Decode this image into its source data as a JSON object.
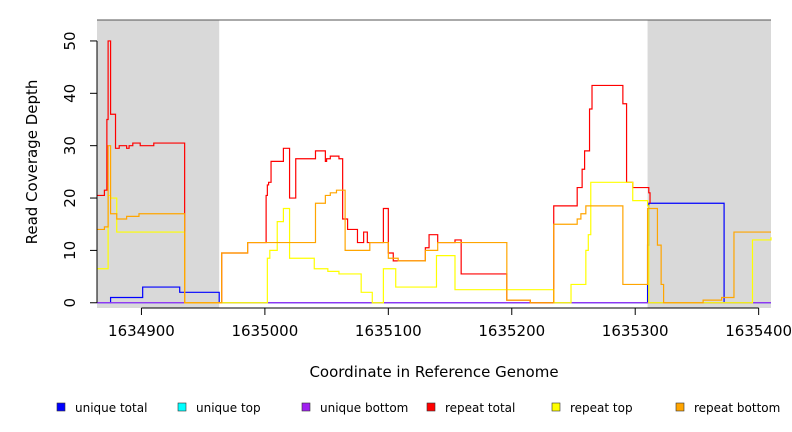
{
  "chart_data": {
    "type": "line",
    "title": "",
    "xlabel": "Coordinate in Reference Genome",
    "ylabel": "Read Coverage Depth",
    "xlim": [
      1634864,
      1635410
    ],
    "ylim": [
      -1,
      54
    ],
    "xticks": [
      1634900,
      1635000,
      1635100,
      1635200,
      1635300,
      1635400
    ],
    "xtick_labels": [
      "1634900",
      "1635000",
      "1635100",
      "1635200",
      "1635300",
      "1635400"
    ],
    "yticks": [
      0,
      10,
      20,
      30,
      40,
      50
    ],
    "ytick_labels": [
      "0",
      "10",
      "20",
      "30",
      "40",
      "50"
    ],
    "shaded_regions": [
      [
        1634864,
        1634963
      ],
      [
        1635310,
        1635410
      ]
    ],
    "shade_color": "#d9d9d9",
    "legend_position": "bottom",
    "series": [
      {
        "name": "unique total",
        "color": "#0000ff",
        "step": true,
        "x": [
          1634864,
          1634875,
          1634901,
          1634931,
          1634963,
          1634964,
          1635309,
          1635310,
          1635311,
          1635372,
          1635373,
          1635410
        ],
        "y": [
          0,
          1,
          3,
          2,
          0,
          0,
          0,
          11,
          19,
          0,
          0,
          0
        ]
      },
      {
        "name": "unique top",
        "color": "#00ffff",
        "step": true,
        "x": [
          1634864,
          1635410
        ],
        "y": [
          0,
          0
        ]
      },
      {
        "name": "unique bottom",
        "color": "#a020f0",
        "step": true,
        "x": [
          1634864,
          1635410
        ],
        "y": [
          0,
          0
        ]
      },
      {
        "name": "repeat total",
        "color": "#ff0000",
        "step": true,
        "x": [
          1634864,
          1634870,
          1634872,
          1634873,
          1634875,
          1634879,
          1634882,
          1634888,
          1634890,
          1634893,
          1634899,
          1634910,
          1634911,
          1634935,
          1634965,
          1634986,
          1635001,
          1635002,
          1635003,
          1635005,
          1635015,
          1635020,
          1635025,
          1635041,
          1635049,
          1635050,
          1635053,
          1635060,
          1635063,
          1635067,
          1635075,
          1635080,
          1635083,
          1635085,
          1635096,
          1635100,
          1635104,
          1635108,
          1635130,
          1635133,
          1635140,
          1635154,
          1635159,
          1635196,
          1635215,
          1635234,
          1635253,
          1635257,
          1635259,
          1635263,
          1635265,
          1635267,
          1635269,
          1635272,
          1635273,
          1635290,
          1635293,
          1635298,
          1635311,
          1635312
        ],
        "y": [
          20.5,
          21.5,
          35,
          50,
          36,
          29.5,
          30,
          29.5,
          30,
          30.5,
          30,
          30.5,
          30.5,
          0,
          9.5,
          11.5,
          20.5,
          22.5,
          23,
          27,
          29.5,
          20,
          27.5,
          29,
          27,
          27.5,
          28,
          27.5,
          16,
          14,
          11.5,
          13.5,
          11.5,
          11.5,
          18,
          9.5,
          8,
          8,
          10.5,
          13,
          11.5,
          12,
          5.5,
          0.5,
          0,
          18.5,
          22,
          25.5,
          29,
          37,
          41.5,
          41.5,
          41.5,
          41.5,
          41.5,
          38,
          23,
          22,
          21,
          19
        ]
      },
      {
        "name": "repeat top",
        "color": "#ffff00",
        "step": true,
        "x": [
          1634864,
          1634868,
          1634873,
          1634875,
          1634880,
          1634935,
          1635000,
          1635002,
          1635004,
          1635010,
          1635015,
          1635020,
          1635040,
          1635051,
          1635060,
          1635078,
          1635087,
          1635096,
          1635106,
          1635139,
          1635154,
          1635174,
          1635234,
          1635248,
          1635255,
          1635260,
          1635262,
          1635264,
          1635266,
          1635268,
          1635287,
          1635298,
          1635310,
          1635311,
          1635360,
          1635380,
          1635395,
          1635410
        ],
        "y": [
          6.5,
          6.5,
          20.5,
          20,
          13.5,
          0,
          0,
          8.5,
          10,
          15.5,
          18,
          8.5,
          6.5,
          6,
          5.5,
          2,
          0,
          6.5,
          3,
          9,
          2.5,
          2.5,
          0,
          3.5,
          3.5,
          10,
          13,
          23,
          23,
          23,
          23,
          19.5,
          18.5,
          0,
          0,
          0,
          12,
          12.5
        ]
      },
      {
        "name": "repeat bottom",
        "color": "#ffa500",
        "step": true,
        "x": [
          1634864,
          1634870,
          1634873,
          1634875,
          1634880,
          1634888,
          1634898,
          1634905,
          1634935,
          1634965,
          1634986,
          1635001,
          1635003,
          1635005,
          1635010,
          1635041,
          1635049,
          1635053,
          1635058,
          1635065,
          1635078,
          1635085,
          1635096,
          1635100,
          1635108,
          1635130,
          1635134,
          1635140,
          1635154,
          1635196,
          1635215,
          1635234,
          1635253,
          1635256,
          1635260,
          1635263,
          1635265,
          1635268,
          1635270,
          1635290,
          1635293,
          1635310,
          1635312,
          1635318,
          1635321,
          1635323,
          1635330,
          1635355,
          1635370,
          1635380,
          1635410
        ],
        "y": [
          14,
          14.5,
          30,
          17,
          16,
          16.5,
          17,
          17,
          0,
          9.5,
          11.5,
          11.5,
          11.5,
          11.5,
          11.5,
          19,
          20.5,
          21,
          21.5,
          10,
          10,
          11.5,
          11.5,
          8.5,
          8,
          10,
          10,
          11.5,
          11.5,
          0.5,
          0,
          15,
          16,
          17,
          18.5,
          18.5,
          18.5,
          18.5,
          18.5,
          3.5,
          3.5,
          18,
          18,
          11,
          3.5,
          0,
          0,
          0.5,
          1,
          13.5,
          13.5
        ]
      }
    ]
  }
}
